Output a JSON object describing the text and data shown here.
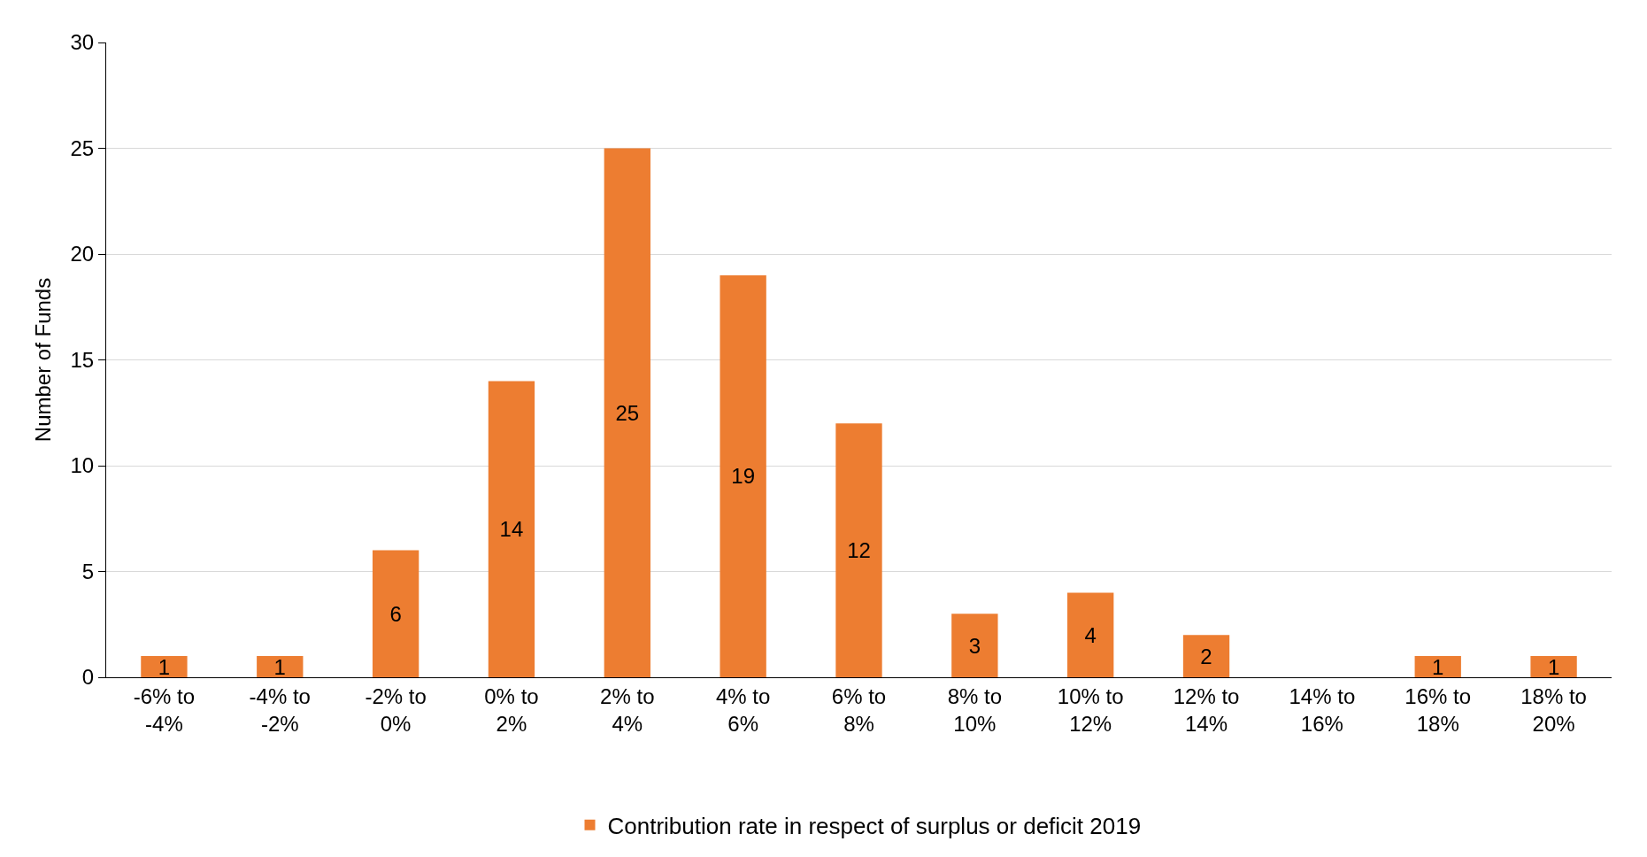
{
  "chart_data": {
    "type": "bar",
    "ylabel": "Number of Funds",
    "categories": [
      "-6% to -4%",
      "-4% to -2%",
      "-2% to 0%",
      "0% to 2%",
      "2% to 4%",
      "4% to 6%",
      "6% to 8%",
      "8% to 10%",
      "10% to 12%",
      "12% to 14%",
      "14% to 16%",
      "16% to 18%",
      "18% to 20%"
    ],
    "series": [
      {
        "name": "Contribution rate in respect of surplus or deficit 2019",
        "color": "#ed7d31",
        "values": [
          1,
          1,
          6,
          14,
          25,
          19,
          12,
          3,
          4,
          2,
          0,
          1,
          1
        ],
        "value_labels": [
          "1",
          "1",
          "6",
          "14",
          "25",
          "19",
          "12",
          "3",
          "4",
          "2",
          null,
          "1",
          "1"
        ]
      }
    ],
    "ylim": [
      0,
      30
    ],
    "yticks": [
      0,
      5,
      10,
      15,
      20,
      25,
      30
    ],
    "grid": "y",
    "legend": "bottom"
  }
}
